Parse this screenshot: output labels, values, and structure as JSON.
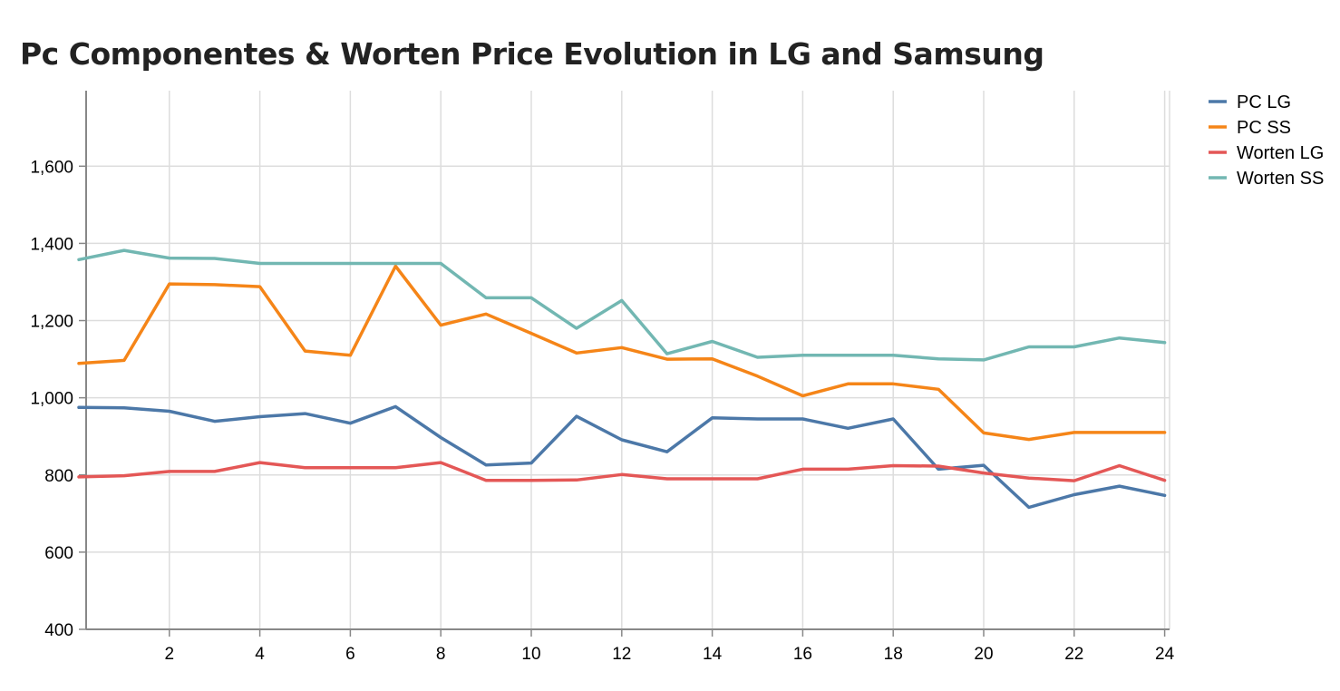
{
  "chart_data": {
    "type": "line",
    "title": "Pc Componentes & Worten Price Evolution in LG and Samsung",
    "xlabel": "",
    "ylabel": "",
    "xlim": [
      0,
      24
    ],
    "ylim": [
      400,
      1780
    ],
    "x_ticks": [
      2,
      4,
      6,
      8,
      10,
      12,
      14,
      16,
      18,
      20,
      22,
      24
    ],
    "y_ticks": [
      400,
      600,
      800,
      1000,
      1200,
      1400,
      1600
    ],
    "x_tick_labels": [
      "2",
      "4",
      "6",
      "8",
      "10",
      "12",
      "14",
      "16",
      "18",
      "20",
      "22",
      "24"
    ],
    "y_tick_labels": [
      "400",
      "600",
      "800",
      "1,000",
      "1,200",
      "1,400",
      "1,600"
    ],
    "grid": true,
    "legend_position": "top-right",
    "x": [
      0,
      1,
      2,
      3,
      4,
      5,
      6,
      7,
      8,
      9,
      10,
      11,
      12,
      13,
      14,
      15,
      16,
      17,
      18,
      19,
      20,
      21,
      22,
      23,
      24
    ],
    "series": [
      {
        "name": "PC LG",
        "color": "#4c78a8",
        "values": [
          975,
          974,
          965,
          939,
          951,
          959,
          934,
          977,
          897,
          826,
          831,
          952,
          891,
          860,
          948,
          945,
          945,
          921,
          945,
          815,
          825,
          716,
          749,
          771,
          747
        ]
      },
      {
        "name": "PC SS",
        "color": "#f58518",
        "values": [
          1089,
          1097,
          1295,
          1293,
          1288,
          1121,
          1110,
          1341,
          1188,
          1217,
          1167,
          1116,
          1130,
          1100,
          1101,
          1056,
          1005,
          1036,
          1036,
          1022,
          909,
          892,
          910,
          910,
          910
        ]
      },
      {
        "name": "Worten LG",
        "color": "#e45756",
        "values": [
          795,
          798,
          809,
          809,
          832,
          819,
          819,
          819,
          832,
          786,
          786,
          787,
          801,
          790,
          790,
          790,
          815,
          815,
          824,
          823,
          805,
          792,
          785,
          824,
          786
        ]
      },
      {
        "name": "Worten SS",
        "color": "#72b7b2",
        "values": [
          1358,
          1382,
          1362,
          1361,
          1348,
          1348,
          1348,
          1348,
          1348,
          1259,
          1259,
          1180,
          1252,
          1114,
          1146,
          1105,
          1110,
          1110,
          1110,
          1101,
          1098,
          1132,
          1132,
          1155,
          1143
        ]
      }
    ]
  }
}
